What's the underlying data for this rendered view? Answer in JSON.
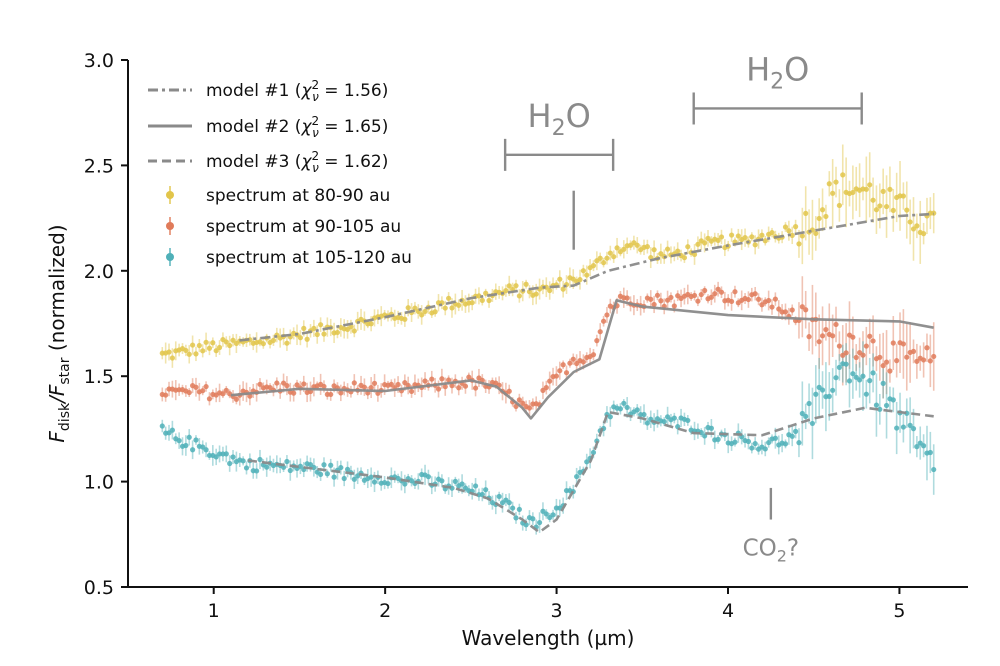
{
  "chart_data": {
    "type": "line",
    "xlabel": "Wavelength (µm)",
    "ylabel": {
      "main": "F",
      "sub1": "disk",
      "sep": "/F",
      "sub2": "star",
      "rest": " (normalized)"
    },
    "xlim": [
      0.5,
      5.4
    ],
    "ylim": [
      0.5,
      3.0
    ],
    "xticks": [
      1,
      2,
      3,
      4,
      5
    ],
    "yticks": [
      0.5,
      1.0,
      1.5,
      2.0,
      2.5,
      3.0
    ],
    "xtick_labels": [
      "1",
      "2",
      "3",
      "4",
      "5"
    ],
    "ytick_labels": [
      "0.5",
      "1.0",
      "1.5",
      "2.0",
      "2.5",
      "3.0"
    ],
    "grid": false,
    "legend_position": "top-left",
    "series": [
      {
        "name": "spectrum at 80-90 au",
        "kind": "scatter-errorbar",
        "color": "#e2c54a",
        "x": [
          0.7,
          0.8,
          0.9,
          1.0,
          1.1,
          1.2,
          1.3,
          1.4,
          1.5,
          1.6,
          1.7,
          1.8,
          1.9,
          2.0,
          2.1,
          2.2,
          2.3,
          2.4,
          2.5,
          2.6,
          2.7,
          2.8,
          2.9,
          3.0,
          3.1,
          3.2,
          3.3,
          3.4,
          3.5,
          3.6,
          3.7,
          3.8,
          3.9,
          4.0,
          4.1,
          4.2,
          4.3,
          4.4,
          4.5,
          4.6,
          4.7,
          4.8,
          4.9,
          5.0,
          5.1,
          5.2
        ],
        "y": [
          1.6,
          1.61,
          1.63,
          1.64,
          1.65,
          1.66,
          1.67,
          1.68,
          1.7,
          1.71,
          1.73,
          1.74,
          1.76,
          1.78,
          1.79,
          1.81,
          1.83,
          1.85,
          1.86,
          1.88,
          1.9,
          1.91,
          1.9,
          1.93,
          1.96,
          2.0,
          2.08,
          2.12,
          2.11,
          2.07,
          2.08,
          2.1,
          2.13,
          2.14,
          2.14,
          2.16,
          2.18,
          2.2,
          2.24,
          2.36,
          2.4,
          2.38,
          2.33,
          2.29,
          2.25,
          2.2
        ]
      },
      {
        "name": "spectrum at 90-105 au",
        "kind": "scatter-errorbar",
        "color": "#e07b5a",
        "x": [
          0.7,
          0.8,
          0.9,
          1.0,
          1.1,
          1.2,
          1.3,
          1.4,
          1.5,
          1.6,
          1.7,
          1.8,
          1.9,
          2.0,
          2.1,
          2.2,
          2.3,
          2.4,
          2.5,
          2.6,
          2.7,
          2.8,
          2.85,
          2.9,
          3.0,
          3.1,
          3.2,
          3.25,
          3.3,
          3.4,
          3.5,
          3.6,
          3.7,
          3.8,
          3.9,
          4.0,
          4.1,
          4.2,
          4.3,
          4.4,
          4.5,
          4.6,
          4.7,
          4.8,
          4.9,
          5.0,
          5.1,
          5.2
        ],
        "y": [
          1.43,
          1.42,
          1.43,
          1.42,
          1.41,
          1.43,
          1.44,
          1.45,
          1.44,
          1.44,
          1.43,
          1.44,
          1.45,
          1.43,
          1.44,
          1.45,
          1.46,
          1.47,
          1.47,
          1.46,
          1.42,
          1.36,
          1.33,
          1.38,
          1.5,
          1.58,
          1.6,
          1.7,
          1.82,
          1.87,
          1.86,
          1.86,
          1.86,
          1.88,
          1.9,
          1.88,
          1.87,
          1.86,
          1.83,
          1.78,
          1.72,
          1.68,
          1.67,
          1.66,
          1.62,
          1.58,
          1.57,
          1.56
        ]
      },
      {
        "name": "spectrum at 105-120 au",
        "kind": "scatter-errorbar",
        "color": "#4fb0b8",
        "x": [
          0.7,
          0.8,
          0.9,
          1.0,
          1.1,
          1.2,
          1.3,
          1.4,
          1.5,
          1.6,
          1.7,
          1.8,
          1.9,
          2.0,
          2.1,
          2.2,
          2.3,
          2.4,
          2.5,
          2.6,
          2.7,
          2.8,
          2.85,
          2.9,
          3.0,
          3.1,
          3.2,
          3.25,
          3.3,
          3.4,
          3.5,
          3.6,
          3.7,
          3.8,
          3.9,
          4.0,
          4.1,
          4.2,
          4.3,
          4.4,
          4.5,
          4.6,
          4.7,
          4.8,
          4.9,
          5.0,
          5.1,
          5.2
        ],
        "y": [
          1.24,
          1.2,
          1.17,
          1.14,
          1.11,
          1.08,
          1.08,
          1.07,
          1.07,
          1.06,
          1.05,
          1.03,
          1.03,
          1.02,
          1.0,
          1.01,
          0.99,
          0.98,
          0.96,
          0.93,
          0.89,
          0.83,
          0.8,
          0.82,
          0.88,
          0.97,
          1.13,
          1.22,
          1.33,
          1.35,
          1.3,
          1.29,
          1.28,
          1.27,
          1.23,
          1.21,
          1.2,
          1.17,
          1.19,
          1.22,
          1.32,
          1.48,
          1.55,
          1.47,
          1.4,
          1.3,
          1.17,
          1.06
        ]
      },
      {
        "name": "model #1 (χ²ᵥ = 1.56)",
        "legend": {
          "pre": "model #1 (",
          "chi": "χ",
          "sup": "2",
          "sub": "ν",
          "post": " = 1.56)"
        },
        "kind": "line",
        "dash": "dashdot",
        "color": "#8a8a8a",
        "x": [
          1.15,
          1.5,
          2.0,
          2.5,
          2.9,
          3.1,
          3.3,
          3.6,
          4.0,
          4.5,
          5.0,
          5.2
        ],
        "y": [
          1.67,
          1.7,
          1.78,
          1.87,
          1.92,
          1.93,
          2.0,
          2.06,
          2.12,
          2.19,
          2.26,
          2.27
        ]
      },
      {
        "name": "model #2 (χ²ᵥ = 1.65)",
        "legend": {
          "pre": "model #2 (",
          "chi": "χ",
          "sup": "2",
          "sub": "ν",
          "post": " = 1.65)"
        },
        "kind": "line",
        "dash": "solid",
        "color": "#8a8a8a",
        "x": [
          1.1,
          1.5,
          2.0,
          2.5,
          2.65,
          2.8,
          2.85,
          2.95,
          3.1,
          3.25,
          3.35,
          3.5,
          4.0,
          4.5,
          5.0,
          5.2
        ],
        "y": [
          1.41,
          1.44,
          1.43,
          1.48,
          1.45,
          1.35,
          1.3,
          1.4,
          1.52,
          1.58,
          1.86,
          1.83,
          1.79,
          1.77,
          1.76,
          1.73
        ]
      },
      {
        "name": "model #3 (χ²ᵥ = 1.62)",
        "legend": {
          "pre": "model #3 (",
          "chi": "χ",
          "sup": "2",
          "sub": "ν",
          "post": " = 1.62)"
        },
        "kind": "line",
        "dash": "dashed",
        "color": "#8a8a8a",
        "x": [
          1.2,
          1.6,
          2.0,
          2.4,
          2.6,
          2.8,
          2.9,
          3.0,
          3.2,
          3.3,
          3.5,
          3.8,
          4.2,
          4.5,
          4.8,
          5.2
        ],
        "y": [
          1.1,
          1.06,
          1.02,
          0.97,
          0.92,
          0.82,
          0.76,
          0.82,
          1.1,
          1.33,
          1.3,
          1.23,
          1.22,
          1.3,
          1.35,
          1.31
        ]
      }
    ],
    "annotations": [
      {
        "label": {
          "main": "H",
          "sub": "2",
          "rest": "O"
        },
        "range": [
          2.7,
          3.33
        ],
        "y_bracket": 2.55,
        "tick_x": 3.1,
        "tick_y": [
          2.1,
          2.38
        ]
      },
      {
        "label": {
          "main": "H",
          "sub": "2",
          "rest": "O"
        },
        "range": [
          3.8,
          4.78
        ],
        "y_bracket": 2.77
      },
      {
        "label": {
          "main": "CO",
          "sub": "2",
          "rest": "?"
        },
        "tick_x": 4.25,
        "tick_y": [
          0.82,
          0.97
        ]
      }
    ]
  }
}
